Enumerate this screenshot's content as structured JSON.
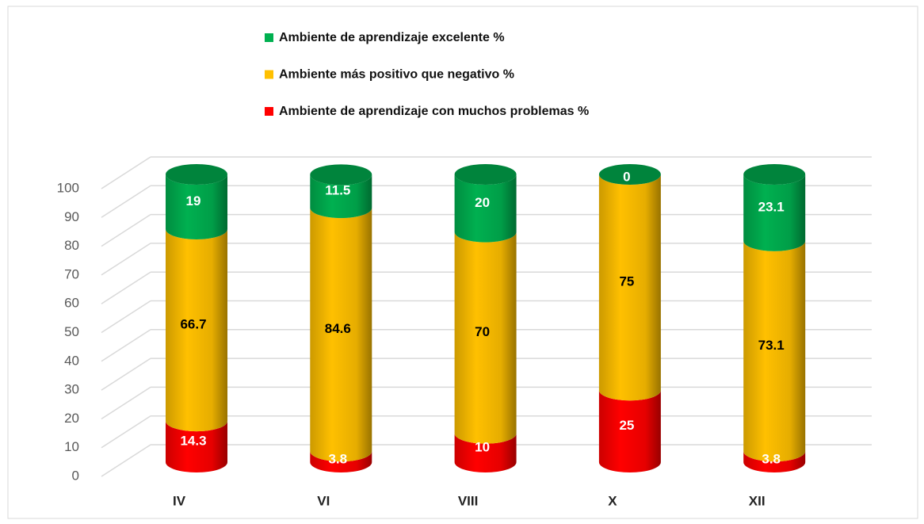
{
  "chart_data": {
    "type": "cylinder_stacked",
    "categories": [
      "IV",
      "VI",
      "VIII",
      "X",
      "XII"
    ],
    "series": [
      {
        "name": "Ambiente de aprendizaje con muchos problemas %",
        "color": "#ff0000",
        "values": [
          14.3,
          3.8,
          10,
          25,
          3.8
        ]
      },
      {
        "name": "Ambiente más positivo que negativo %",
        "color": "#ffc000",
        "values": [
          66.7,
          84.6,
          70,
          75,
          73.1
        ]
      },
      {
        "name": "Ambiente de aprendizaje excelente %",
        "color": "#00b050",
        "values": [
          19,
          11.5,
          20,
          0,
          23.1
        ]
      }
    ],
    "ylim": [
      0,
      100
    ],
    "yticks": [
      0,
      10,
      20,
      30,
      40,
      50,
      60,
      70,
      80,
      90,
      100
    ],
    "grid": true
  }
}
